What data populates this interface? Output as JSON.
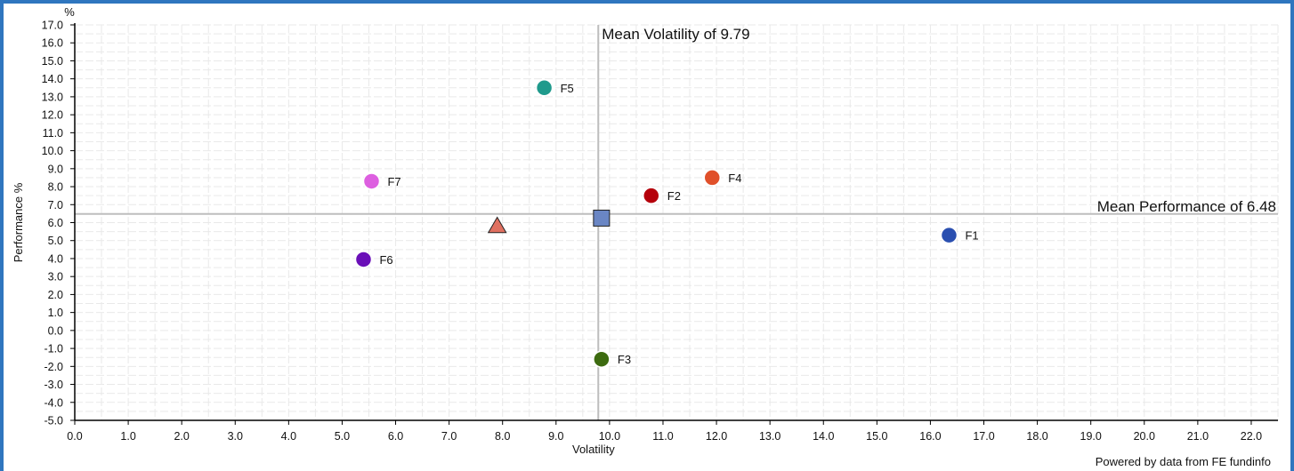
{
  "footer": "Powered by data from FE fundinfo",
  "chart_data": {
    "type": "scatter",
    "xlabel": "Volatility",
    "ylabel": "Performance %",
    "y_unit": "%",
    "xlim": [
      0,
      22.5
    ],
    "ylim": [
      -5,
      17
    ],
    "x_ticks": [
      "0.0",
      "1.0",
      "2.0",
      "3.0",
      "4.0",
      "5.0",
      "6.0",
      "7.0",
      "8.0",
      "9.0",
      "10.0",
      "11.0",
      "12.0",
      "13.0",
      "14.0",
      "15.0",
      "16.0",
      "17.0",
      "18.0",
      "19.0",
      "20.0",
      "21.0",
      "22.0"
    ],
    "y_ticks": [
      "17.0",
      "16.0",
      "15.0",
      "14.0",
      "13.0",
      "12.0",
      "11.0",
      "10.0",
      "9.0",
      "8.0",
      "7.0",
      "6.0",
      "5.0",
      "4.0",
      "3.0",
      "2.0",
      "1.0",
      "0.0",
      "-1.0",
      "-2.0",
      "-3.0",
      "-4.0",
      "-5.0"
    ],
    "grid": true,
    "reference_lines": [
      {
        "axis": "x",
        "value": 9.79,
        "label": "Mean Volatility of 9.79"
      },
      {
        "axis": "y",
        "value": 6.48,
        "label": "Mean Performance of 6.48"
      }
    ],
    "points": [
      {
        "label": "F1",
        "x": 16.35,
        "y": 5.3,
        "color": "#2a4fb0",
        "shape": "circle"
      },
      {
        "label": "F2",
        "x": 10.78,
        "y": 7.5,
        "color": "#b5000b",
        "shape": "circle"
      },
      {
        "label": "F3",
        "x": 9.85,
        "y": -1.6,
        "color": "#3d6b10",
        "shape": "circle"
      },
      {
        "label": "F4",
        "x": 11.92,
        "y": 8.5,
        "color": "#e0502a",
        "shape": "circle"
      },
      {
        "label": "F5",
        "x": 8.78,
        "y": 13.5,
        "color": "#1f9a8c",
        "shape": "circle"
      },
      {
        "label": "F6",
        "x": 5.4,
        "y": 3.95,
        "color": "#6a0fb8",
        "shape": "circle"
      },
      {
        "label": "F7",
        "x": 5.55,
        "y": 8.3,
        "color": "#dd5fe0",
        "shape": "circle"
      },
      {
        "label": "",
        "x": 7.9,
        "y": 5.8,
        "color": "#e07060",
        "shape": "triangle"
      },
      {
        "label": "",
        "x": 9.85,
        "y": 6.25,
        "color": "#6a86c4",
        "shape": "square"
      }
    ]
  }
}
